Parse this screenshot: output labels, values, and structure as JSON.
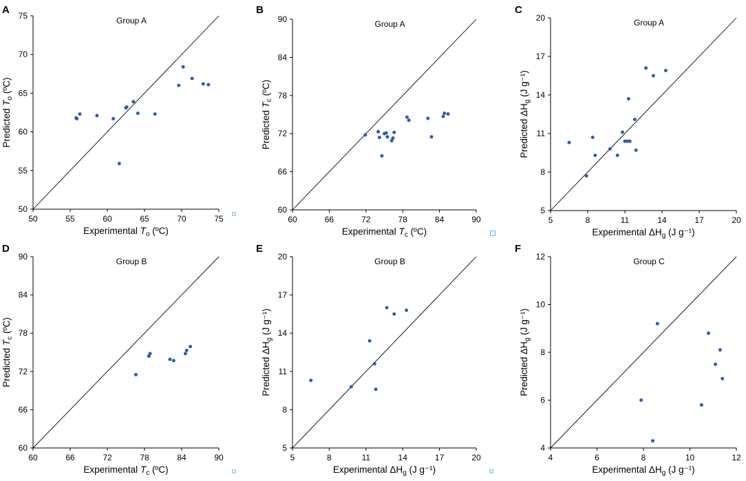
{
  "figure_title": "Predicted vs experimental parameters",
  "colors": {
    "points": "#2f5ea8",
    "marker": "#6fb3e0",
    "line": "#000000"
  },
  "chart_data": [
    {
      "type": "scatter",
      "panel": "A",
      "title": "Group A",
      "xlabel": {
        "pre": "Experimental ",
        "var": "T",
        "sub": "o",
        "post": " (ºC)"
      },
      "ylabel": {
        "pre": "Predicted ",
        "var": "T",
        "sub": "o",
        "post": " (ºC)"
      },
      "xlim": [
        50,
        75
      ],
      "ylim": [
        50,
        75
      ],
      "xticks": [
        50,
        55,
        60,
        65,
        70,
        75
      ],
      "yticks": [
        50,
        55,
        60,
        65,
        70,
        75
      ],
      "identity_line": true,
      "marker": "small-square",
      "x": [
        55.8,
        55.9,
        56.3,
        58.6,
        60.8,
        61.6,
        62.5,
        62.6,
        63.5,
        64.1,
        66.4,
        69.6,
        70.2,
        71.4,
        72.9,
        73.6
      ],
      "y": [
        61.8,
        61.7,
        62.3,
        62.1,
        61.7,
        55.9,
        63.1,
        63.2,
        63.9,
        62.4,
        62.3,
        66.0,
        68.4,
        66.9,
        66.2,
        66.1
      ]
    },
    {
      "type": "scatter",
      "panel": "B",
      "title": "Group A",
      "xlabel": {
        "pre": "Experimental ",
        "var": "T",
        "sub": "c",
        "post": " (ºC)"
      },
      "ylabel": {
        "pre": "Predicted ",
        "var": "T",
        "sub": "c",
        "post": " (ºC)"
      },
      "xlim": [
        60,
        90
      ],
      "ylim": [
        60,
        90
      ],
      "xticks": [
        60,
        66,
        72,
        78,
        84,
        90
      ],
      "yticks": [
        60,
        66,
        72,
        78,
        84,
        90
      ],
      "identity_line": true,
      "marker": "large-square",
      "x": [
        71.9,
        74.0,
        74.2,
        74.6,
        75.0,
        75.3,
        75.5,
        76.2,
        76.4,
        76.6,
        78.7,
        79.0,
        82.1,
        82.7,
        84.6,
        84.8,
        85.4
      ],
      "y": [
        71.8,
        72.3,
        71.4,
        68.5,
        72.0,
        72.1,
        71.5,
        70.9,
        71.3,
        72.2,
        74.6,
        74.1,
        74.4,
        71.5,
        74.7,
        75.2,
        75.1
      ]
    },
    {
      "type": "scatter",
      "panel": "C",
      "title": "Group A",
      "xlabel": {
        "pre": "Experimental ΔH",
        "var": "",
        "sub": "g",
        "post": " (J g⁻¹)"
      },
      "ylabel": {
        "pre": "Predicted ΔH",
        "var": "",
        "sub": "g",
        "post": " (J g⁻¹)"
      },
      "xlim": [
        5,
        20
      ],
      "ylim": [
        5,
        20
      ],
      "xticks": [
        5,
        8,
        11,
        14,
        17,
        20
      ],
      "yticks": [
        5,
        8,
        11,
        14,
        17,
        20
      ],
      "identity_line": true,
      "marker": "none",
      "x": [
        6.5,
        7.9,
        8.4,
        8.6,
        9.8,
        10.4,
        10.8,
        11.0,
        11.2,
        11.3,
        11.4,
        11.8,
        11.9,
        12.7,
        13.3,
        14.3
      ],
      "y": [
        10.3,
        7.7,
        10.7,
        9.3,
        9.8,
        9.3,
        11.1,
        10.4,
        10.4,
        13.7,
        10.4,
        12.1,
        9.7,
        16.1,
        15.5,
        15.9
      ]
    },
    {
      "type": "scatter",
      "panel": "D",
      "title": "Group B",
      "xlabel": {
        "pre": "Experimental ",
        "var": "T",
        "sub": "c",
        "post": " (ºC)"
      },
      "ylabel": {
        "pre": "Predicted ",
        "var": "T",
        "sub": "c",
        "post": " (ºC)"
      },
      "xlim": [
        60,
        90
      ],
      "ylim": [
        60,
        90
      ],
      "xticks": [
        60,
        66,
        72,
        78,
        84,
        90
      ],
      "yticks": [
        60,
        66,
        72,
        78,
        84,
        90
      ],
      "identity_line": true,
      "marker": "small-square",
      "x": [
        76.6,
        78.7,
        78.9,
        82.1,
        82.7,
        84.6,
        84.8,
        85.4
      ],
      "y": [
        71.5,
        74.4,
        74.8,
        73.9,
        73.7,
        74.8,
        75.3,
        75.9
      ]
    },
    {
      "type": "scatter",
      "panel": "E",
      "title": "Group B",
      "xlabel": {
        "pre": "Experimental ΔH",
        "var": "",
        "sub": "g",
        "post": " (J g⁻¹)"
      },
      "ylabel": {
        "pre": "Predicted ΔH",
        "var": "",
        "sub": "g",
        "post": " (J g⁻¹)"
      },
      "xlim": [
        5,
        20
      ],
      "ylim": [
        5,
        20
      ],
      "xticks": [
        5,
        8,
        11,
        14,
        17,
        20
      ],
      "yticks": [
        5,
        8,
        11,
        14,
        17,
        20
      ],
      "identity_line": true,
      "marker": "small-square",
      "x": [
        6.5,
        9.8,
        11.3,
        11.7,
        11.8,
        12.7,
        13.3,
        14.3
      ],
      "y": [
        10.3,
        9.8,
        13.4,
        11.6,
        9.6,
        16.0,
        15.5,
        15.8
      ]
    },
    {
      "type": "scatter",
      "panel": "F",
      "title": "Group C",
      "xlabel": {
        "pre": "Experimental ΔH",
        "var": "",
        "sub": "g",
        "post": " (J g⁻¹)"
      },
      "ylabel": {
        "pre": "Predicted ΔH",
        "var": "",
        "sub": "g",
        "post": " (J g⁻¹)"
      },
      "xlim": [
        4,
        12
      ],
      "ylim": [
        4,
        12
      ],
      "xticks": [
        4,
        6,
        8,
        10,
        12
      ],
      "yticks": [
        4,
        6,
        8,
        10,
        12
      ],
      "identity_line": true,
      "marker": "none",
      "x": [
        7.9,
        8.4,
        8.6,
        10.5,
        10.8,
        11.1,
        11.3,
        11.4
      ],
      "y": [
        6.0,
        4.3,
        9.2,
        5.8,
        8.8,
        7.5,
        8.1,
        6.9
      ]
    }
  ]
}
